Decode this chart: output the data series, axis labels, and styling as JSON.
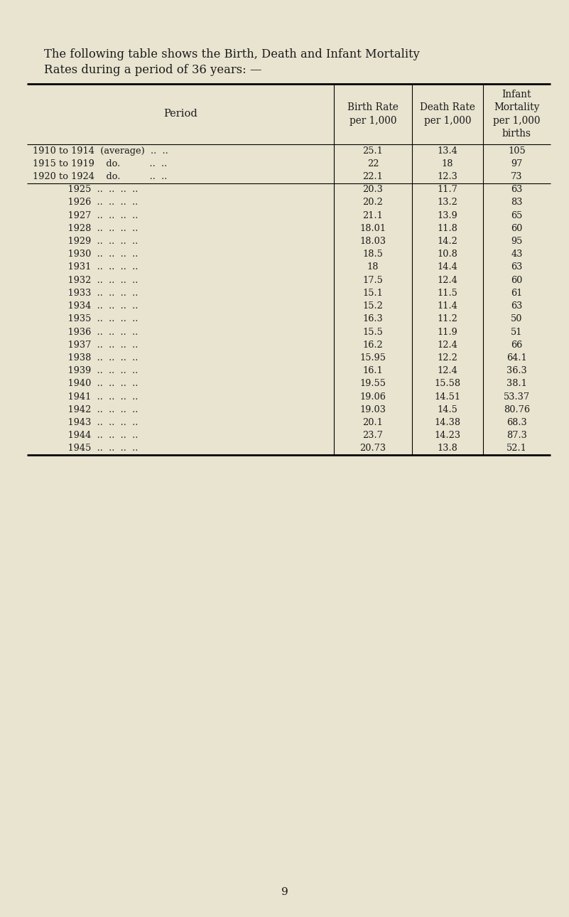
{
  "title_line1": "The following table shows the Birth, Death and Infant Mortality",
  "title_line2": "Rates during a period of 36 years: —",
  "bg_color": "#e8e4d0",
  "text_color": "#1a1a1a",
  "page_number": "9",
  "rows": [
    [
      "1910 to 1914  (average)  ..  ..",
      "25.1",
      "13.4",
      "105"
    ],
    [
      "1915 to 1919    do.          ..  ..",
      "22",
      "18",
      "97"
    ],
    [
      "1920 to 1924    do.          ..  ..",
      "22.1",
      "12.3",
      "73"
    ],
    [
      "            1925  ..  ..  ..  ..",
      "20.3",
      "11.7",
      "63"
    ],
    [
      "            1926  ..  ..  ..  ..",
      "20.2",
      "13.2",
      "83"
    ],
    [
      "            1927  ..  ..  ..  ..",
      "21.1",
      "13.9",
      "65"
    ],
    [
      "            1928  ..  ..  ..  ..",
      "18.01",
      "11.8",
      "60"
    ],
    [
      "            1929  ..  ..  ..  ..",
      "18.03",
      "14.2",
      "95"
    ],
    [
      "            1930  ..  ..  ..  ..",
      "18.5",
      "10.8",
      "43"
    ],
    [
      "            1931  ..  ..  ..  ..",
      "18",
      "14.4",
      "63"
    ],
    [
      "            1932  ..  ..  ..  ..",
      "17.5",
      "12.4",
      "60"
    ],
    [
      "            1933  ..  ..  ..  ..",
      "15.1",
      "11.5",
      "61"
    ],
    [
      "            1934  ..  ..  ..  ..",
      "15.2",
      "11.4",
      "63"
    ],
    [
      "            1935  ..  ..  ..  ..",
      "16.3",
      "11.2",
      "50"
    ],
    [
      "            1936  ..  ..  ..  ..",
      "15.5",
      "11.9",
      "51"
    ],
    [
      "            1937  ..  ..  ..  ..",
      "16.2",
      "12.4",
      "66"
    ],
    [
      "            1938  ..  ..  ..  ..",
      "15.95",
      "12.2",
      "64.1"
    ],
    [
      "            1939  ..  ..  ..  ..",
      "16.1",
      "12.4",
      "36.3"
    ],
    [
      "            1940  ..  ..  ..  ..",
      "19.55",
      "15.58",
      "38.1"
    ],
    [
      "            1941  ..  ..  ..  ..",
      "19.06",
      "14.51",
      "53.37"
    ],
    [
      "            1942  ..  ..  ..  ..",
      "19.03",
      "14.5",
      "80.76"
    ],
    [
      "            1943  ..  ..  ..  ..",
      "20.1",
      "14.38",
      "68.3"
    ],
    [
      "            1944  ..  ..  ..  ..",
      "23.7",
      "14.23",
      "87.3"
    ],
    [
      "            1945  ..  ..  ..  ..",
      "20.73",
      "13.8",
      "52.1"
    ]
  ]
}
